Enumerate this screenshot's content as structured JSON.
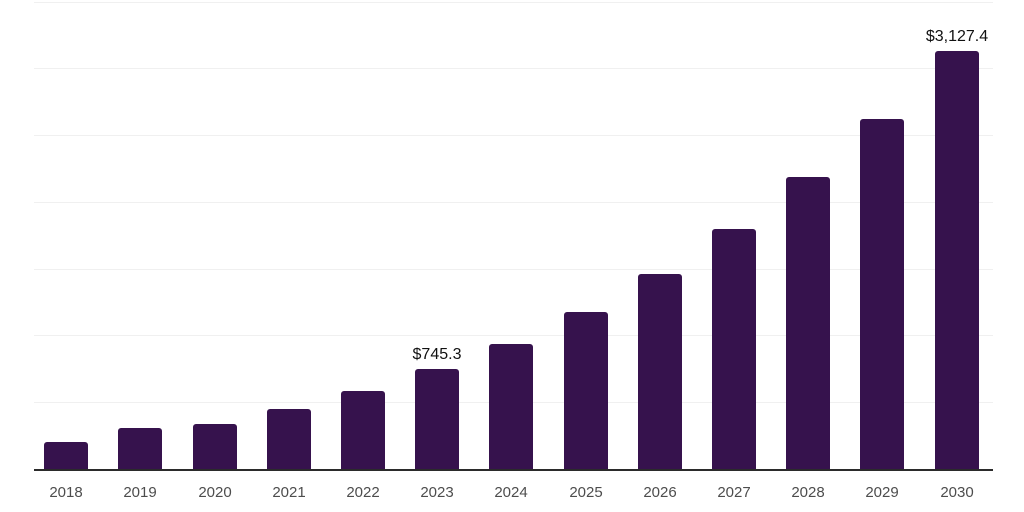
{
  "chart_data": {
    "type": "bar",
    "title": "",
    "xlabel": "",
    "ylabel": "",
    "categories": [
      "2018",
      "2019",
      "2020",
      "2021",
      "2022",
      "2023",
      "2024",
      "2025",
      "2026",
      "2027",
      "2028",
      "2029",
      "2030"
    ],
    "values": [
      204.0,
      303.9,
      336.3,
      448.4,
      580.7,
      745.3,
      934.2,
      1175.6,
      1461.1,
      1793.7,
      2187.6,
      2623.3,
      3127.4
    ],
    "data_labels": [
      {
        "category": "2023",
        "text": "$745.3"
      },
      {
        "category": "2030",
        "text": "$3,127.4"
      }
    ],
    "ylim": [
      0,
      3500
    ],
    "gridline_step": 500,
    "grid": "horizontal",
    "legend": "none",
    "colors": {
      "bar": "#36124d",
      "axis": "#2b2b2b",
      "gridline": "#f0f0f0",
      "tick_label": "#4d4d4d",
      "data_label": "#111111",
      "background": "#ffffff"
    }
  }
}
